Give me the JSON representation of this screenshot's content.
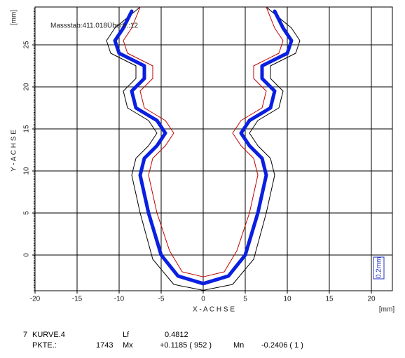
{
  "chart_data": {
    "type": "line",
    "x_unit": "[mm]",
    "y_unit": "[mm]",
    "xlabel": "X - A C H S E",
    "ylabel": "Y - A C H S E",
    "annotation": "Massstab:411.018Überh.:12",
    "scale_bar_label": "0.2mm",
    "xlim": [
      -20,
      22.5
    ],
    "ylim": [
      -4.25,
      29.5
    ],
    "xticks": [
      -20,
      -15,
      -10,
      -5,
      0,
      5,
      10,
      15,
      20
    ],
    "yticks": [
      0,
      5,
      10,
      15,
      20,
      25
    ],
    "grid": true,
    "series": [
      {
        "color": "#000000",
        "x": [
          -7.5,
          -10.5,
          -11.5,
          -11,
          -8,
          -8,
          -9.5,
          -9,
          -6.5,
          -5.5,
          -6.5,
          -8,
          -8.5,
          -7.5,
          -6,
          -3.5,
          0,
          3.5,
          6,
          7.5,
          8.5,
          8,
          6.5,
          5.5,
          6.5,
          9,
          9.5,
          8,
          8,
          11,
          11.5,
          10.5,
          7.5
        ],
        "values": [
          29.5,
          27,
          25.5,
          24,
          22.5,
          21,
          19.5,
          17.5,
          16,
          14.5,
          13,
          11.5,
          9.5,
          5,
          -0.5,
          -3.5,
          -4.2,
          -3.5,
          -0.5,
          5,
          9.5,
          11.5,
          13,
          14.5,
          16,
          17.5,
          19.5,
          21,
          22.5,
          24,
          25.5,
          27,
          29.5
        ]
      },
      {
        "color": "#c00000",
        "x": [
          -7.5,
          -8.5,
          -9.5,
          -9,
          -6,
          -6,
          -7.5,
          -7,
          -4.5,
          -3.5,
          -4.5,
          -6,
          -6.5,
          -5.5,
          -4,
          -2.5,
          0,
          2.5,
          4,
          5.5,
          6.5,
          6,
          4.5,
          3.5,
          4.5,
          7,
          7.5,
          6,
          6,
          9,
          9.5,
          8.5,
          7.5
        ],
        "values": [
          29.5,
          27,
          25.5,
          24,
          22.5,
          21,
          19.5,
          17.5,
          16,
          14.5,
          13,
          11.5,
          9.5,
          5,
          0.5,
          -2,
          -2.6,
          -2,
          0.5,
          5,
          9.5,
          11.5,
          13,
          14.5,
          16,
          17.5,
          19.5,
          21,
          22.5,
          24,
          25.5,
          27,
          29.5
        ]
      },
      {
        "color": "#0a1fe0",
        "x": [
          -8.5,
          -9.5,
          -10.5,
          -10,
          -7,
          -7,
          -8.5,
          -8,
          -5.5,
          -4.5,
          -5.5,
          -7,
          -7.5,
          -6.5,
          -5,
          -3,
          0,
          3,
          5,
          6.5,
          7.5,
          7,
          5.5,
          4.5,
          5.5,
          8,
          8.5,
          7,
          7,
          10,
          10.5,
          9.5,
          8.5
        ],
        "values": [
          29,
          27,
          25.5,
          24,
          22.5,
          21,
          19.5,
          17.5,
          16,
          14.5,
          13,
          11.5,
          9.5,
          5,
          0,
          -2.5,
          -3.4,
          -2.5,
          0,
          5,
          9.5,
          11.5,
          13,
          14.5,
          16,
          17.5,
          19.5,
          21,
          22.5,
          24,
          25.5,
          27,
          29
        ]
      }
    ]
  },
  "footer": {
    "row1": [
      "7",
      "KURVE.4",
      "Lf",
      "0.4812"
    ],
    "row2": [
      "PKTE.:",
      "1743",
      "Mx",
      "+0.1185 ( 952 )",
      "Mn",
      "-0.2406 ( 1 )"
    ]
  }
}
